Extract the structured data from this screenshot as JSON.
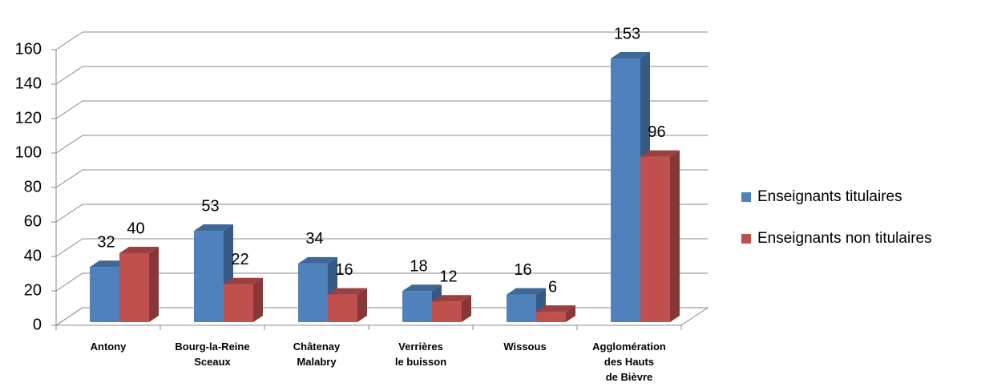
{
  "chart_data": {
    "type": "bar3d",
    "categories": [
      "Antony",
      "Bourg-la-Reine\nSceaux",
      "Châtenay\nMalabry",
      "Verrières\nle buisson",
      "Wissous",
      "Agglomération\ndes Hauts\nde Bièvre"
    ],
    "series": [
      {
        "name": "Enseignants titulaires",
        "color": "#4f81bd",
        "values": [
          32,
          53,
          34,
          18,
          16,
          153
        ]
      },
      {
        "name": "Enseignants non titulaires",
        "color": "#c0504d",
        "values": [
          40,
          22,
          16,
          12,
          6,
          96
        ]
      }
    ],
    "ylim": [
      0,
      160
    ],
    "yticks": [
      0,
      20,
      40,
      60,
      80,
      100,
      120,
      140,
      160
    ],
    "grid": true,
    "legend": "right"
  }
}
